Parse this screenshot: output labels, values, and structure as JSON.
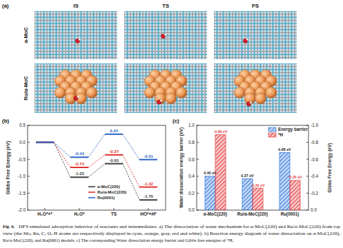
{
  "panel_labels": [
    "(a)",
    "(b)",
    "(c)"
  ],
  "panel_a": {
    "columns": [
      "IS",
      "TS",
      "FS"
    ],
    "rows": [
      "α-MoC",
      "Ru/α-MoC"
    ]
  },
  "chart_data": [
    {
      "type": "line",
      "ylabel": "Gibbs Free Energy (eV)",
      "categories": [
        "H₂O*+*",
        "H₂O*",
        "TS",
        "HO*+H*"
      ],
      "series": [
        {
          "name": "α-MoC(220)",
          "color": "#3c3c3c",
          "values": [
            0,
            -1.03,
            -0.63,
            -1.7
          ],
          "value_labels": [
            null,
            "-1.03",
            "-0.63",
            "-1.70"
          ]
        },
        {
          "name": "Ru/α-MoC(220)",
          "color": "#e0302c",
          "values": [
            0,
            -0.74,
            -0.37,
            -1.32
          ],
          "value_labels": [
            null,
            "-0.74",
            "-0.37",
            "-1.32"
          ]
        },
        {
          "name": "Ru(0001)",
          "color": "#2a63c4",
          "values": [
            0,
            -0.44,
            0.24,
            -0.51
          ],
          "value_labels": [
            null,
            "-0.44",
            "0.24",
            "-0.51"
          ]
        }
      ],
      "ylim": [
        -2.0,
        0.5
      ],
      "yticks": [
        0.5,
        {
          "value": 0,
          "label": "0.0"
        },
        -0.5,
        {
          "value": -1,
          "label": "-1.0"
        },
        -1.5,
        {
          "value": -2,
          "label": "-2.0"
        }
      ],
      "line_style": "dashed",
      "marker": "level",
      "data_labels": true,
      "legend": "lower center"
    },
    {
      "type": "bar",
      "ylabel": "Water dissociation energy barrier (eV)",
      "y2label": "Gibbs Free Energy (eV)",
      "categories": [
        "α-MoC(220)",
        "Ru/α-MoC(220)",
        "Ru(0001)"
      ],
      "series": [
        {
          "name": "Energy barrier",
          "color": "#3d7ee0",
          "values": [
            0.4,
            0.37,
            0.68
          ],
          "value_labels": [
            "0.40 eV",
            "0.37 eV",
            "0.68 eV"
          ]
        },
        {
          "name": "*H",
          "color": "#e8474a",
          "axis": "y2",
          "values": [
            -0.89,
            -0.26,
            -0.35
          ],
          "value_labels": [
            "-0.89 eV",
            "-0.26 eV",
            "-0.35 eV"
          ]
        }
      ],
      "ylim": [
        0,
        1.0
      ],
      "yticks": [
        {
          "value": 0,
          "label": "0.0"
        },
        0.2,
        0.4,
        0.6,
        0.8,
        {
          "value": 1,
          "label": "1.0"
        }
      ],
      "y2lim": [
        0,
        -1.0
      ],
      "y2ticks": [
        {
          "value": 0,
          "label": "0.0"
        },
        -0.2,
        -0.4,
        -0.6,
        -0.8,
        {
          "value": -1,
          "label": "-1.0"
        }
      ],
      "data_labels": true,
      "legend": "upper right"
    }
  ],
  "caption": {
    "label": "Fig. 6.",
    "lines": [
      "DFT-simulated adsorption behavior of reactants and intermediates. a) The dissociation of water mechanism for α-MoC(220) and Ru/α-MoC(220) from top",
      "view (the Mo, Ru, C, O, H atoms are respectively displayed in cyan, orange, gray, red and white). b) Reaction energy diagram of water dissociation on α-MoC(220),",
      "Ru/α-MoC(220), and Ru(0001) models. c) The corresponding Water dissociation energy barrier and Gibbs free energies of *H."
    ]
  }
}
